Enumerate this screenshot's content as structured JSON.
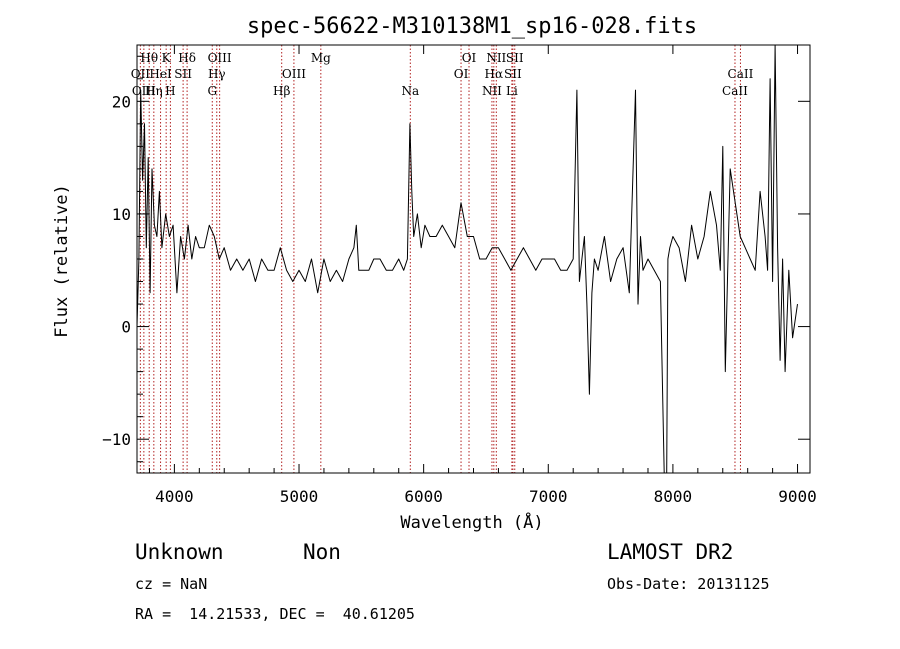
{
  "chart_data": {
    "type": "line",
    "title": "spec-56622-M310138M1_sp16-028.fits",
    "xlabel": "Wavelength (Å)",
    "ylabel": "Flux (relative)",
    "xlim": [
      3700,
      9100
    ],
    "ylim": [
      -13,
      25
    ],
    "xticks": [
      4000,
      5000,
      6000,
      7000,
      8000,
      9000
    ],
    "yticks": [
      -10,
      0,
      10,
      20
    ],
    "ytick_labels": [
      "−10",
      "0",
      "10",
      "20"
    ],
    "line_color": "#000000",
    "marker_color": "#b22222",
    "series": [
      {
        "x": [
          3700,
          3715,
          3730,
          3745,
          3760,
          3775,
          3790,
          3805,
          3820,
          3840,
          3860,
          3880,
          3900,
          3930,
          3960,
          3990,
          4020,
          4050,
          4080,
          4110,
          4140,
          4170,
          4200,
          4240,
          4280,
          4320,
          4360,
          4400,
          4450,
          4500,
          4550,
          4600,
          4650,
          4700,
          4750,
          4800,
          4850,
          4900,
          4950,
          5000,
          5050,
          5100,
          5150,
          5200,
          5250,
          5300,
          5350,
          5400,
          5440,
          5460,
          5480,
          5520,
          5560,
          5600,
          5650,
          5700,
          5750,
          5800,
          5840,
          5870,
          5890,
          5905,
          5920,
          5950,
          5980,
          6010,
          6050,
          6100,
          6150,
          6200,
          6250,
          6300,
          6350,
          6400,
          6450,
          6500,
          6550,
          6600,
          6650,
          6700,
          6750,
          6800,
          6850,
          6900,
          6950,
          7000,
          7050,
          7100,
          7150,
          7200,
          7230,
          7250,
          7270,
          7290,
          7310,
          7330,
          7350,
          7370,
          7400,
          7450,
          7500,
          7550,
          7600,
          7650,
          7700,
          7720,
          7740,
          7760,
          7800,
          7850,
          7900,
          7930,
          7950,
          7960,
          7975,
          8000,
          8050,
          8100,
          8150,
          8200,
          8250,
          8300,
          8350,
          8380,
          8400,
          8420,
          8440,
          8460,
          8500,
          8540,
          8580,
          8620,
          8660,
          8700,
          8740,
          8760,
          8780,
          8800,
          8820,
          8840,
          8860,
          8880,
          8900,
          8930,
          8960,
          9000
        ],
        "y": [
          0,
          6,
          21,
          13,
          18,
          7,
          15,
          3,
          14,
          9,
          8,
          12,
          7,
          10,
          8,
          9,
          3,
          8,
          6,
          9,
          6,
          8,
          7,
          7,
          9,
          8,
          6,
          7,
          5,
          6,
          5,
          6,
          4,
          6,
          5,
          5,
          7,
          5,
          4,
          5,
          4,
          6,
          3,
          6,
          4,
          5,
          4,
          6,
          7,
          9,
          5,
          5,
          5,
          6,
          6,
          5,
          5,
          6,
          5,
          6,
          18,
          12,
          8,
          10,
          7,
          9,
          8,
          8,
          9,
          8,
          7,
          11,
          8,
          8,
          6,
          6,
          7,
          7,
          6,
          5,
          6,
          7,
          6,
          5,
          6,
          6,
          6,
          5,
          5,
          6,
          21,
          4,
          6,
          8,
          2,
          -6,
          3,
          6,
          5,
          8,
          4,
          6,
          7,
          3,
          21,
          2,
          8,
          5,
          6,
          5,
          4,
          -13,
          -13,
          6,
          7,
          8,
          7,
          4,
          9,
          6,
          8,
          12,
          9,
          5,
          16,
          -4,
          5,
          14,
          11,
          8,
          7,
          6,
          5,
          12,
          8,
          5,
          22,
          4,
          25,
          7,
          -3,
          6,
          -4,
          5,
          -1,
          2
        ]
      }
    ],
    "lines": [
      {
        "name": "Hθ",
        "x": 3798,
        "row": 0
      },
      {
        "name": "OII",
        "x": 3727,
        "row": 1
      },
      {
        "name": "OIII",
        "x": 3755,
        "row": 2
      },
      {
        "name": "Hη",
        "x": 3835,
        "row": 2
      },
      {
        "name": "K",
        "x": 3934,
        "row": 0
      },
      {
        "name": "HeI",
        "x": 3889,
        "row": 1
      },
      {
        "name": "SII",
        "x": 4070,
        "row": 1
      },
      {
        "name": "H",
        "x": 3968,
        "row": 2
      },
      {
        "name": "Hδ",
        "x": 4102,
        "row": 0
      },
      {
        "name": "OIII",
        "x": 4363,
        "row": 0
      },
      {
        "name": "Hγ",
        "x": 4340,
        "row": 1
      },
      {
        "name": "G",
        "x": 4304,
        "row": 2
      },
      {
        "name": "Mg",
        "x": 5175,
        "row": 0
      },
      {
        "name": "OIII",
        "x": 4959,
        "row": 1
      },
      {
        "name": "Hβ",
        "x": 4861,
        "row": 2
      },
      {
        "name": "Na",
        "x": 5893,
        "row": 2
      },
      {
        "name": "OI",
        "x": 6364,
        "row": 0
      },
      {
        "name": "OI",
        "x": 6300,
        "row": 1
      },
      {
        "name": "NII",
        "x": 6583,
        "row": 0
      },
      {
        "name": "SII",
        "x": 6731,
        "row": 0
      },
      {
        "name": "Hα",
        "x": 6563,
        "row": 1
      },
      {
        "name": "SII",
        "x": 6716,
        "row": 1
      },
      {
        "name": "NII",
        "x": 6548,
        "row": 2
      },
      {
        "name": "Li",
        "x": 6708,
        "row": 2
      },
      {
        "name": "CaII",
        "x": 8542,
        "row": 1
      },
      {
        "name": "CaII",
        "x": 8498,
        "row": 2
      }
    ]
  },
  "footer": {
    "object_class": "Unknown",
    "object_subclass": "Non",
    "survey": "LAMOST DR2",
    "cz": "cz = NaN",
    "obs_date": "Obs-Date: 20131125",
    "coords": "RA =  14.21533, DEC =  40.61205"
  }
}
